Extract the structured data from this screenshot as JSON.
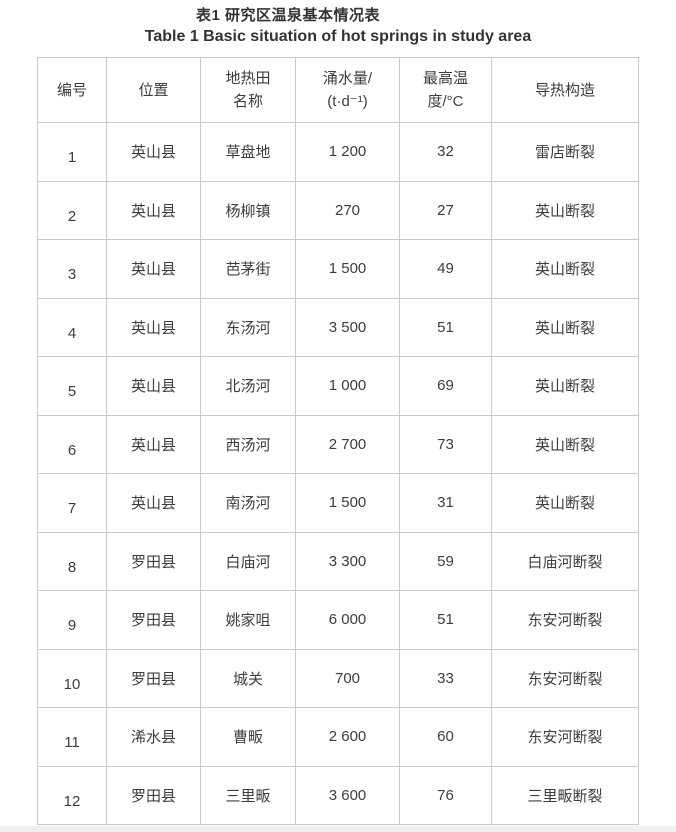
{
  "page": {
    "title_zh": "表1 研究区温泉基本情况表",
    "title_en": "Table 1 Basic situation of hot springs in study area"
  },
  "table": {
    "columns": [
      {
        "id": "number",
        "lines": [
          "编号"
        ]
      },
      {
        "id": "location",
        "lines": [
          "位置"
        ]
      },
      {
        "id": "field-name",
        "lines": [
          "地热田",
          "名称"
        ]
      },
      {
        "id": "water-yield",
        "lines": [
          "涌水量/",
          "(t·d⁻¹)"
        ]
      },
      {
        "id": "max-temp",
        "lines": [
          "最高温",
          "度/°C"
        ]
      },
      {
        "id": "structure",
        "lines": [
          "导热构造"
        ]
      }
    ],
    "cell_names": [
      "cell-number",
      "cell-location",
      "cell-field-name",
      "cell-water-yield",
      "cell-max-temp",
      "cell-structure"
    ],
    "rows": [
      [
        "1",
        "英山县",
        "草盘地",
        "1 200",
        "32",
        "雷店断裂"
      ],
      [
        "2",
        "英山县",
        "杨柳镇",
        "270",
        "27",
        "英山断裂"
      ],
      [
        "3",
        "英山县",
        "芭茅街",
        "1 500",
        "49",
        "英山断裂"
      ],
      [
        "4",
        "英山县",
        "东汤河",
        "3 500",
        "51",
        "英山断裂"
      ],
      [
        "5",
        "英山县",
        "北汤河",
        "1 000",
        "69",
        "英山断裂"
      ],
      [
        "6",
        "英山县",
        "西汤河",
        "2 700",
        "73",
        "英山断裂"
      ],
      [
        "7",
        "英山县",
        "南汤河",
        "1 500",
        "31",
        "英山断裂"
      ],
      [
        "8",
        "罗田县",
        "白庙河",
        "3 300",
        "59",
        "白庙河断裂"
      ],
      [
        "9",
        "罗田县",
        "姚家咀",
        "6 000",
        "51",
        "东安河断裂"
      ],
      [
        "10",
        "罗田县",
        "城关",
        "700",
        "33",
        "东安河断裂"
      ],
      [
        "11",
        "浠水县",
        "曹畈",
        "2 600",
        "60",
        "东安河断裂"
      ],
      [
        "12",
        "罗田县",
        "三里畈",
        "3 600",
        "76",
        "三里畈断裂"
      ]
    ]
  },
  "colors": {
    "border": "#c9c9c9",
    "text": "#3d3d3d",
    "title": "#333333",
    "bottom_strip": "#eef1f4"
  }
}
